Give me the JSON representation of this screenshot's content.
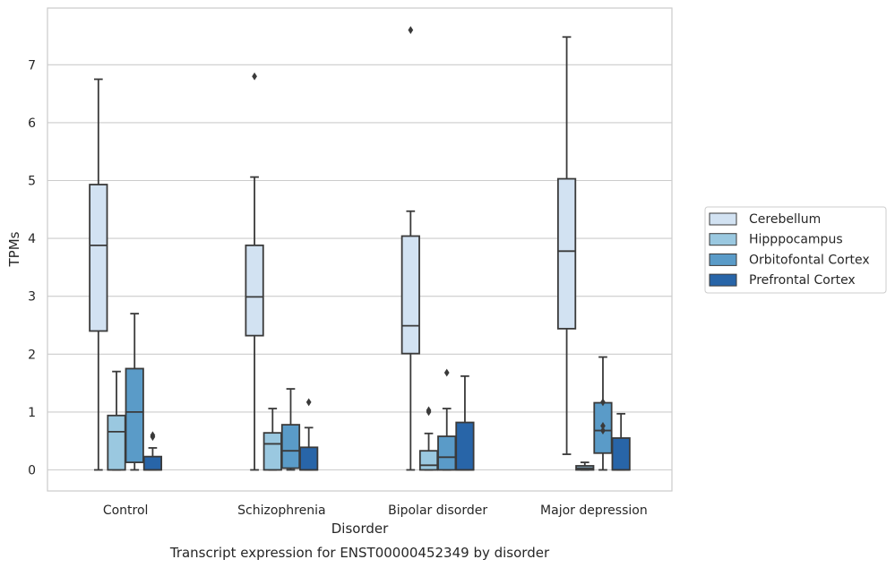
{
  "chart_data": {
    "type": "boxplot",
    "title": "",
    "caption": "Transcript expression for ENST00000452349 by disorder",
    "xlabel": "Disorder",
    "ylabel": "TPMs",
    "ylim": [
      -0.35,
      7.9
    ],
    "yticks": [
      0,
      1,
      2,
      3,
      4,
      5,
      6,
      7
    ],
    "grid": "horizontal",
    "legend_position": "right",
    "categories": [
      "Control",
      "Schizophrenia",
      "Bipolar disorder",
      "Major depression"
    ],
    "series": [
      {
        "name": "Cerebellum",
        "color": "#d2e2f2",
        "boxes": [
          {
            "whislo": 0.0,
            "q1": 2.4,
            "med": 3.88,
            "q3": 4.93,
            "whishi": 6.75,
            "fliers": []
          },
          {
            "whislo": 0.0,
            "q1": 2.32,
            "med": 2.99,
            "q3": 3.88,
            "whishi": 5.06,
            "fliers": [
              6.8
            ]
          },
          {
            "whislo": 0.0,
            "q1": 2.01,
            "med": 2.49,
            "q3": 4.04,
            "whishi": 4.47,
            "fliers": [
              7.6
            ]
          },
          {
            "whislo": 0.27,
            "q1": 2.44,
            "med": 3.78,
            "q3": 5.03,
            "whishi": 7.48,
            "fliers": []
          }
        ]
      },
      {
        "name": "Hipppocampus",
        "color": "#9ac8e0",
        "boxes": [
          {
            "whislo": 0.0,
            "q1": 0.0,
            "med": 0.66,
            "q3": 0.94,
            "whishi": 1.7,
            "fliers": []
          },
          {
            "whislo": 0.0,
            "q1": 0.0,
            "med": 0.45,
            "q3": 0.64,
            "whishi": 1.06,
            "fliers": []
          },
          {
            "whislo": 0.0,
            "q1": 0.0,
            "med": 0.08,
            "q3": 0.33,
            "whishi": 0.63,
            "fliers": [
              1.0,
              1.03
            ]
          },
          {
            "whislo": 0.0,
            "q1": 0.0,
            "med": 0.03,
            "q3": 0.07,
            "whishi": 0.13,
            "fliers": []
          }
        ]
      },
      {
        "name": "Orbitofontal Cortex",
        "color": "#5a9bc8",
        "boxes": [
          {
            "whislo": 0.0,
            "q1": 0.13,
            "med": 1.0,
            "q3": 1.75,
            "whishi": 2.7,
            "fliers": []
          },
          {
            "whislo": 0.0,
            "q1": 0.03,
            "med": 0.33,
            "q3": 0.78,
            "whishi": 1.4,
            "fliers": []
          },
          {
            "whislo": 0.0,
            "q1": 0.0,
            "med": 0.22,
            "q3": 0.58,
            "whishi": 1.06,
            "fliers": [
              1.68
            ]
          },
          {
            "whislo": 0.0,
            "q1": 0.29,
            "med": 0.68,
            "q3": 1.16,
            "whishi": 1.95,
            "fliers": [
              0.68,
              0.76,
              1.17
            ]
          }
        ]
      },
      {
        "name": "Prefrontal Cortex",
        "color": "#2865a8",
        "boxes": [
          {
            "whislo": 0.0,
            "q1": 0.0,
            "med": 0.0,
            "q3": 0.23,
            "whishi": 0.38,
            "fliers": [
              0.57,
              0.6
            ]
          },
          {
            "whislo": 0.0,
            "q1": 0.0,
            "med": 0.0,
            "q3": 0.39,
            "whishi": 0.73,
            "fliers": [
              1.17
            ]
          },
          {
            "whislo": 0.0,
            "q1": 0.0,
            "med": 0.0,
            "q3": 0.82,
            "whishi": 1.62,
            "fliers": []
          },
          {
            "whislo": 0.0,
            "q1": 0.0,
            "med": 0.0,
            "q3": 0.55,
            "whishi": 0.97,
            "fliers": []
          }
        ]
      }
    ]
  }
}
